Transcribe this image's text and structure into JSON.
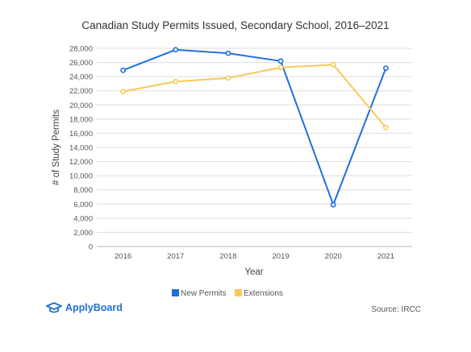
{
  "title": "Canadian Study Permits Issued, Secondary School, 2016–2021",
  "source": "Source: IRCC",
  "logo": {
    "text": "ApplyBoard"
  },
  "colors": {
    "new_permits": "#1f6fe0",
    "extensions": "#f8c957",
    "grid": "#dddddd",
    "axis": "#bbbbbb",
    "text": "#555555"
  },
  "chart_data": {
    "type": "line",
    "title": "Canadian Study Permits Issued, Secondary School, 2016–2021",
    "xlabel": "Year",
    "ylabel": "# of Study Permits",
    "categories": [
      "2016",
      "2017",
      "2018",
      "2019",
      "2020",
      "2021"
    ],
    "y_ticks": [
      "0",
      "2,000",
      "4,000",
      "6,000",
      "8,000",
      "10,000",
      "12,000",
      "14,000",
      "16,000",
      "18,000",
      "20,000",
      "22,000",
      "24,000",
      "26,000",
      "28,000"
    ],
    "ylim": [
      0,
      28000
    ],
    "grid": true,
    "legend_position": "bottom",
    "series": [
      {
        "name": "New Permits",
        "values": [
          24900,
          27800,
          27300,
          26200,
          5900,
          25200
        ]
      },
      {
        "name": "Extensions",
        "values": [
          21900,
          23300,
          23800,
          25300,
          25700,
          16800
        ]
      }
    ]
  }
}
